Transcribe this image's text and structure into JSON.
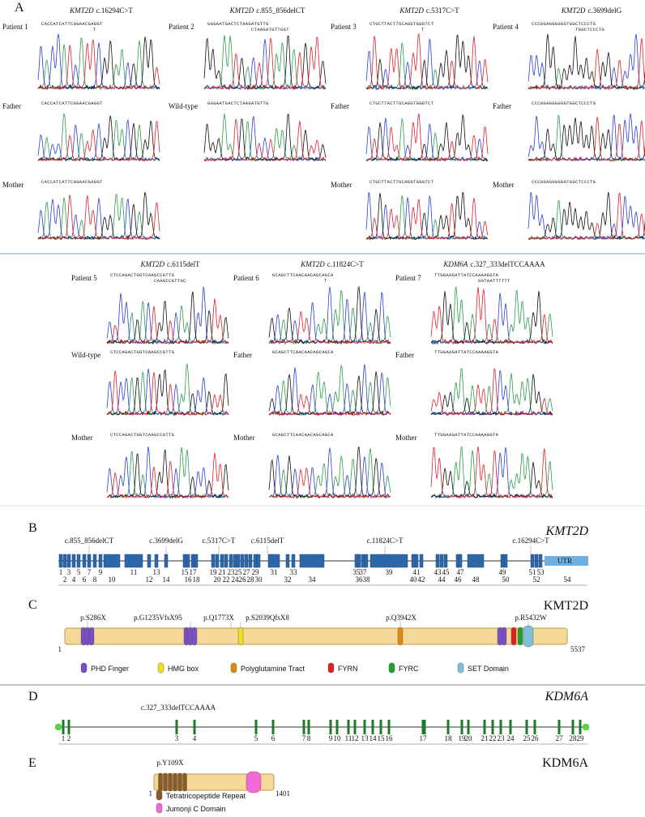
{
  "panel_a": {
    "label": "A",
    "groups": [
      {
        "gene": "KMT2D",
        "mutation": "c.16294C>T",
        "rows": [
          {
            "label": "Patient 1",
            "seq": "CACCATCATTCGGAACGAGGT",
            "alt": "T"
          },
          {
            "label": "Father",
            "seq": "CACCATCATTCGGAACGAGGT"
          },
          {
            "label": "Mother",
            "seq": "CACCATCATTCGGAACGAGGT"
          }
        ]
      },
      {
        "gene": "KMT2D",
        "mutation": "c.855_856delCT",
        "rows": [
          {
            "label": "Patient 2",
            "seq": "GGGAATGACTCTAAGATGTTG",
            "alt": "CTAAGATGTTGGT"
          },
          {
            "label": "Wild-type",
            "seq": "GGGAATGACTCTAAGATGTTG"
          }
        ]
      },
      {
        "gene": "KMT2D",
        "mutation": "c.5317C>T",
        "rows": [
          {
            "label": "Patient 3",
            "seq": "CTGCTTACTTGCAGGTGGGTCT",
            "alt": "T"
          },
          {
            "label": "Father",
            "seq": "CTGCTTACTTGCAGGTGGGTCT"
          },
          {
            "label": "Mother",
            "seq": "CTGCTTACTTGCAGGTGGGTCT"
          }
        ]
      },
      {
        "gene": "KMT2D",
        "mutation": "c.3699delG",
        "rows": [
          {
            "label": "Patient 4",
            "seq": "CCCGGAGGGGGGTGGCTCCCTG",
            "alt": "TGGCTCCCTG"
          },
          {
            "label": "Father",
            "seq": "CCCGGAGGGGGGTGGCTCCCTG"
          },
          {
            "label": "Mother",
            "seq": "CCCGGAGGGGGGTGGCTCCCTG"
          }
        ]
      },
      {
        "gene": "KMT2D",
        "mutation": "c.6115delT",
        "rows": [
          {
            "label": "Patient 5",
            "seq": "CTCCAGACTGGTCAAGCCGTTG",
            "alt": "CAAGCCGTTGC"
          },
          {
            "label": "Wild-type",
            "seq": "CTCCAGACTGGTCAAGCCGTTG"
          },
          {
            "label": "Mother",
            "seq": "CTCCAGACTGGTCAAGCCGTTG"
          }
        ]
      },
      {
        "gene": "KMT2D",
        "mutation": "c.11824C>T",
        "rows": [
          {
            "label": "Patient 6",
            "seq": "GCAGCTTCAACAACAGCAGCA",
            "alt": "T"
          },
          {
            "label": "Father",
            "seq": "GCAGCTTCAACAACAGCAGCA"
          },
          {
            "label": "Mother",
            "seq": "GCAGCTTCAACAACAGCAGCA"
          }
        ]
      },
      {
        "gene": "KDM6A",
        "mutation": "c.327_333delTCCAAAA",
        "rows": [
          {
            "label": "Patient 7",
            "seq": "TTGGAAGATTATCCAAAAGGTA",
            "alt": "GGTAATTTTTT"
          },
          {
            "label": "Father",
            "seq": "TTGGAAGATTATCCAAAAGGTA"
          },
          {
            "label": "Mother",
            "seq": "TTGGAAGATTATCCAAAAGGTA"
          }
        ]
      }
    ]
  },
  "panel_b": {
    "label": "B",
    "gene": "KMT2D",
    "mutations": [
      "c.855_856delCT",
      "c.3699delG",
      "c.5317C>T",
      "c.6115delT",
      "c.11824C>T",
      "c.16294C>T"
    ],
    "exons": [
      1,
      2,
      3,
      4,
      5,
      6,
      7,
      8,
      9,
      10,
      11,
      12,
      13,
      14,
      15,
      16,
      17,
      18,
      19,
      20,
      21,
      22,
      23,
      24,
      25,
      26,
      27,
      28,
      29,
      30,
      31,
      32,
      33,
      34,
      35,
      36,
      37,
      38,
      39,
      40,
      41,
      42,
      43,
      44,
      45,
      46,
      47,
      48,
      49,
      50,
      51,
      52,
      53,
      54
    ],
    "utr": "UTR"
  },
  "panel_c": {
    "label": "C",
    "protein": "KMT2D",
    "mutations": [
      "p.S286X",
      "p.G1235VfsX95",
      "p.Q1773X",
      "p.S2039QfsX8",
      "p.Q3942X",
      "p.R5432W"
    ],
    "start": 1,
    "end": 5537,
    "legend": [
      "PHD Finger",
      "HMG box",
      "Polyglutamine Tract",
      "FYRN",
      "FYRC",
      "SET Domain"
    ]
  },
  "panel_d": {
    "label": "D",
    "gene": "KDM6A",
    "mutation": "c.327_333delTCCAAAA",
    "exons": [
      1,
      2,
      3,
      4,
      5,
      6,
      7,
      8,
      9,
      10,
      11,
      12,
      13,
      14,
      15,
      16,
      17,
      18,
      19,
      20,
      21,
      22,
      23,
      24,
      25,
      26,
      27,
      28,
      29
    ]
  },
  "panel_e": {
    "label": "E",
    "protein": "KDM6A",
    "mutation": "p.Y109X",
    "start": 1,
    "end": 1401,
    "legend": [
      "Tetratricopeptide Repeat",
      "Jumonji C Domain"
    ]
  }
}
